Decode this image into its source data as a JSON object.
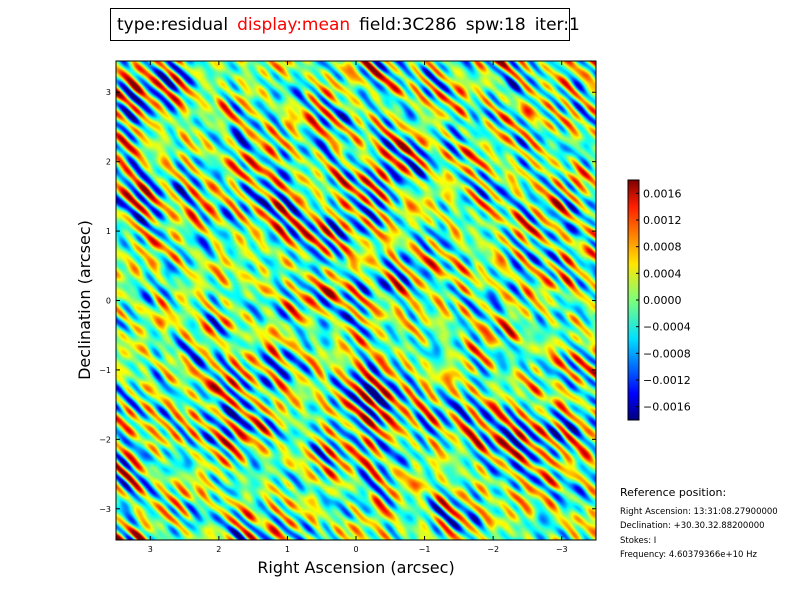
{
  "header": {
    "type": "type:residual",
    "display": "display:mean",
    "field": "field:3C286",
    "spw": "spw:18",
    "iter": "iter:1"
  },
  "colors": {
    "display_highlight": "#ff0000",
    "colormap": "jet"
  },
  "chart_data": {
    "type": "heatmap",
    "xlabel": "Right Ascension (arcsec)",
    "ylabel": "Declination (arcsec)",
    "xlim": [
      3.5,
      -3.5
    ],
    "ylim": [
      -3.45,
      3.45
    ],
    "x_ticks": [
      {
        "value": 3,
        "label": "3"
      },
      {
        "value": 2,
        "label": "2"
      },
      {
        "value": 1,
        "label": "1"
      },
      {
        "value": 0,
        "label": "0"
      },
      {
        "value": -1,
        "label": "−1"
      },
      {
        "value": -2,
        "label": "−2"
      },
      {
        "value": -3,
        "label": "−3"
      }
    ],
    "y_ticks": [
      {
        "value": 3,
        "label": "3"
      },
      {
        "value": 2,
        "label": "2"
      },
      {
        "value": 1,
        "label": "1"
      },
      {
        "value": 0,
        "label": "0"
      },
      {
        "value": -1,
        "label": "−1"
      },
      {
        "value": -2,
        "label": "−2"
      },
      {
        "value": -3,
        "label": "−3"
      }
    ],
    "colorbar": {
      "min": -0.0018,
      "max": 0.0018,
      "ticks": [
        {
          "value": 0.0016,
          "label": "0.0016"
        },
        {
          "value": 0.0012,
          "label": "0.0012"
        },
        {
          "value": 0.0008,
          "label": "0.0008"
        },
        {
          "value": 0.0004,
          "label": "0.0004"
        },
        {
          "value": 0.0,
          "label": "0.0000"
        },
        {
          "value": -0.0004,
          "label": "−0.0004"
        },
        {
          "value": -0.0008,
          "label": "−0.0008"
        },
        {
          "value": -0.0012,
          "label": "−0.0012"
        },
        {
          "value": -0.0016,
          "label": "−0.0016"
        }
      ]
    }
  },
  "reference": {
    "title": "Reference position:",
    "ra": "Right Ascension: 13:31:08.27900000",
    "dec": "Declination: +30.30.32.88200000",
    "stokes": "Stokes: I",
    "frequency": "Frequency: 4.60379366e+10 Hz"
  }
}
